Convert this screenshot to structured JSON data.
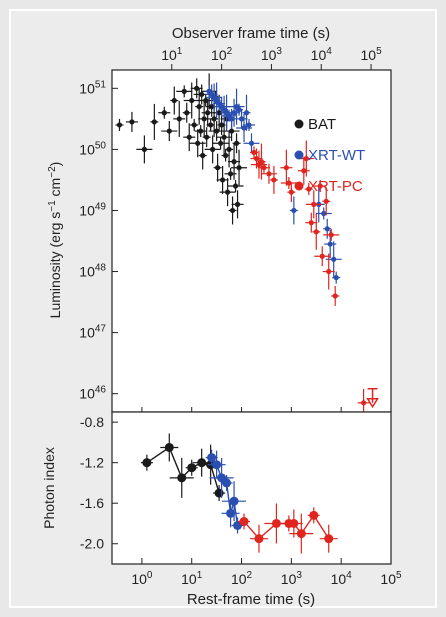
{
  "figure": {
    "background": "#e8e8e8",
    "frame": "#ffffff"
  },
  "top_axis": {
    "label": "Observer frame time (s)",
    "ticks": [
      {
        "base": "10",
        "exp": "1",
        "v": 1
      },
      {
        "base": "10",
        "exp": "2",
        "v": 2
      },
      {
        "base": "10",
        "exp": "3",
        "v": 3
      },
      {
        "base": "10",
        "exp": "4",
        "v": 4
      },
      {
        "base": "10",
        "exp": "5",
        "v": 5
      }
    ]
  },
  "legend": [
    {
      "label": "BAT",
      "color": "#1a1a1a"
    },
    {
      "label": "XRT-WT",
      "color": "#2a4fb0"
    },
    {
      "label": "XRT-PC",
      "color": "#e0241e"
    }
  ],
  "chart_data": [
    {
      "type": "scatter",
      "title": "",
      "xlabel": "Rest-frame time (s)",
      "ylabel": "Luminosity (erg s-1 cm-2)",
      "ylabel_parts": {
        "pre": "Luminosity (erg s",
        "sup1": "−1",
        "mid": " cm",
        "sup2": "−2",
        "post": ")"
      },
      "xscale": "log",
      "yscale": "log",
      "xlim_log": [
        -0.6,
        5.0
      ],
      "ylim_log": [
        45.7,
        51.3
      ],
      "yticks": [
        {
          "base": "10",
          "exp": "51",
          "v": 51
        },
        {
          "base": "10",
          "exp": "50",
          "v": 50
        },
        {
          "base": "10",
          "exp": "49",
          "v": 49
        },
        {
          "base": "10",
          "exp": "48",
          "v": 48
        },
        {
          "base": "10",
          "exp": "47",
          "v": 47
        },
        {
          "base": "10",
          "exp": "46",
          "v": 46
        }
      ],
      "series": [
        {
          "name": "BAT",
          "color": "#1a1a1a",
          "marker": "dot",
          "points_log": [
            [
              -0.45,
              50.4
            ],
            [
              -0.2,
              50.45
            ],
            [
              0.05,
              50.0
            ],
            [
              0.25,
              50.45
            ],
            [
              0.45,
              50.6
            ],
            [
              0.55,
              50.3
            ],
            [
              0.65,
              50.8
            ],
            [
              0.75,
              50.5
            ],
            [
              0.85,
              50.95
            ],
            [
              0.9,
              50.6
            ],
            [
              0.95,
              50.2
            ],
            [
              1.0,
              50.8
            ],
            [
              1.05,
              50.4
            ],
            [
              1.1,
              51.0
            ],
            [
              1.12,
              50.1
            ],
            [
              1.15,
              50.7
            ],
            [
              1.18,
              50.3
            ],
            [
              1.2,
              50.9
            ],
            [
              1.22,
              49.9
            ],
            [
              1.25,
              50.5
            ],
            [
              1.28,
              50.8
            ],
            [
              1.3,
              50.2
            ],
            [
              1.32,
              50.6
            ],
            [
              1.35,
              50.95
            ],
            [
              1.38,
              50.4
            ],
            [
              1.4,
              50.7
            ],
            [
              1.42,
              50.0
            ],
            [
              1.45,
              50.5
            ],
            [
              1.48,
              50.85
            ],
            [
              1.5,
              50.3
            ],
            [
              1.52,
              49.7
            ],
            [
              1.55,
              50.6
            ],
            [
              1.58,
              50.1
            ],
            [
              1.6,
              50.4
            ],
            [
              1.62,
              49.5
            ],
            [
              1.65,
              50.2
            ],
            [
              1.68,
              49.9
            ],
            [
              1.7,
              50.5
            ],
            [
              1.72,
              49.3
            ],
            [
              1.75,
              50.0
            ],
            [
              1.78,
              49.6
            ],
            [
              1.8,
              50.3
            ],
            [
              1.82,
              49.0
            ],
            [
              1.85,
              49.8
            ],
            [
              1.88,
              49.4
            ],
            [
              1.9,
              50.1
            ],
            [
              1.92,
              49.1
            ],
            [
              1.95,
              49.7
            ]
          ]
        },
        {
          "name": "XRT-WT",
          "color": "#2a4fb0",
          "marker": "dot",
          "points_log": [
            [
              1.35,
              50.95
            ],
            [
              1.4,
              50.9
            ],
            [
              1.45,
              50.85
            ],
            [
              1.5,
              50.8
            ],
            [
              1.55,
              50.75
            ],
            [
              1.6,
              50.7
            ],
            [
              1.65,
              50.65
            ],
            [
              1.7,
              50.6
            ],
            [
              1.75,
              50.55
            ],
            [
              1.8,
              50.5
            ],
            [
              1.85,
              50.6
            ],
            [
              1.9,
              50.7
            ],
            [
              1.95,
              50.65
            ],
            [
              2.0,
              50.5
            ],
            [
              2.05,
              50.35
            ],
            [
              2.1,
              50.6
            ],
            [
              2.15,
              50.4
            ],
            [
              2.2,
              50.1
            ],
            [
              3.05,
              49.0
            ],
            [
              3.55,
              49.1
            ],
            [
              3.65,
              48.95
            ],
            [
              3.72,
              48.7
            ],
            [
              3.78,
              48.45
            ],
            [
              3.85,
              48.2
            ],
            [
              3.9,
              47.9
            ]
          ]
        },
        {
          "name": "XRT-PC",
          "color": "#e0241e",
          "marker": "dot",
          "points_log": [
            [
              2.25,
              49.95
            ],
            [
              2.3,
              49.85
            ],
            [
              2.35,
              49.75
            ],
            [
              2.4,
              49.8
            ],
            [
              2.45,
              49.7
            ],
            [
              2.55,
              49.6
            ],
            [
              2.65,
              49.5
            ],
            [
              2.9,
              49.7
            ],
            [
              2.95,
              49.45
            ],
            [
              3.0,
              49.3
            ],
            [
              3.25,
              49.65
            ],
            [
              3.3,
              49.85
            ],
            [
              3.35,
              49.35
            ],
            [
              3.4,
              48.8
            ],
            [
              3.45,
              49.1
            ],
            [
              3.5,
              48.65
            ],
            [
              3.58,
              49.4
            ],
            [
              3.62,
              48.25
            ],
            [
              3.7,
              49.15
            ],
            [
              3.75,
              48.0
            ],
            [
              3.8,
              48.6
            ],
            [
              3.88,
              47.6
            ],
            [
              4.45,
              45.85
            ]
          ]
        }
      ]
    },
    {
      "type": "line",
      "xlabel": "Rest-frame time (s)",
      "ylabel": "Photon index",
      "xscale": "log",
      "xlim_log": [
        -0.6,
        5.0
      ],
      "ylim": [
        -2.2,
        -0.7
      ],
      "xticks": [
        {
          "base": "10",
          "exp": "0",
          "v": 0
        },
        {
          "base": "10",
          "exp": "1",
          "v": 1
        },
        {
          "base": "10",
          "exp": "2",
          "v": 2
        },
        {
          "base": "10",
          "exp": "3",
          "v": 3
        },
        {
          "base": "10",
          "exp": "4",
          "v": 4
        },
        {
          "base": "10",
          "exp": "5",
          "v": 5
        }
      ],
      "yticks": [
        {
          "label": "-0.8",
          "v": -0.8
        },
        {
          "label": "-1.2",
          "v": -1.2
        },
        {
          "label": "-1.6",
          "v": -1.6
        },
        {
          "label": "-2.0",
          "v": -2.0
        }
      ],
      "series": [
        {
          "name": "BAT",
          "color": "#1a1a1a",
          "points": [
            [
              0.1,
              -1.2
            ],
            [
              0.55,
              -1.05
            ],
            [
              0.8,
              -1.35
            ],
            [
              1.0,
              -1.25
            ],
            [
              1.2,
              -1.2
            ],
            [
              1.38,
              -1.22
            ],
            [
              1.55,
              -1.5
            ]
          ]
        },
        {
          "name": "XRT-WT",
          "color": "#2a4fb0",
          "points": [
            [
              1.4,
              -1.15
            ],
            [
              1.5,
              -1.22
            ],
            [
              1.6,
              -1.35
            ],
            [
              1.7,
              -1.4
            ],
            [
              1.78,
              -1.7
            ],
            [
              1.85,
              -1.58
            ],
            [
              1.92,
              -1.82
            ]
          ]
        },
        {
          "name": "XRT-PC",
          "color": "#e0241e",
          "points": [
            [
              2.05,
              -1.78
            ],
            [
              2.35,
              -1.95
            ],
            [
              2.7,
              -1.8
            ],
            [
              2.95,
              -1.8
            ],
            [
              3.05,
              -1.8
            ],
            [
              3.2,
              -1.9
            ],
            [
              3.45,
              -1.72
            ],
            [
              3.75,
              -1.95
            ]
          ]
        }
      ]
    }
  ]
}
